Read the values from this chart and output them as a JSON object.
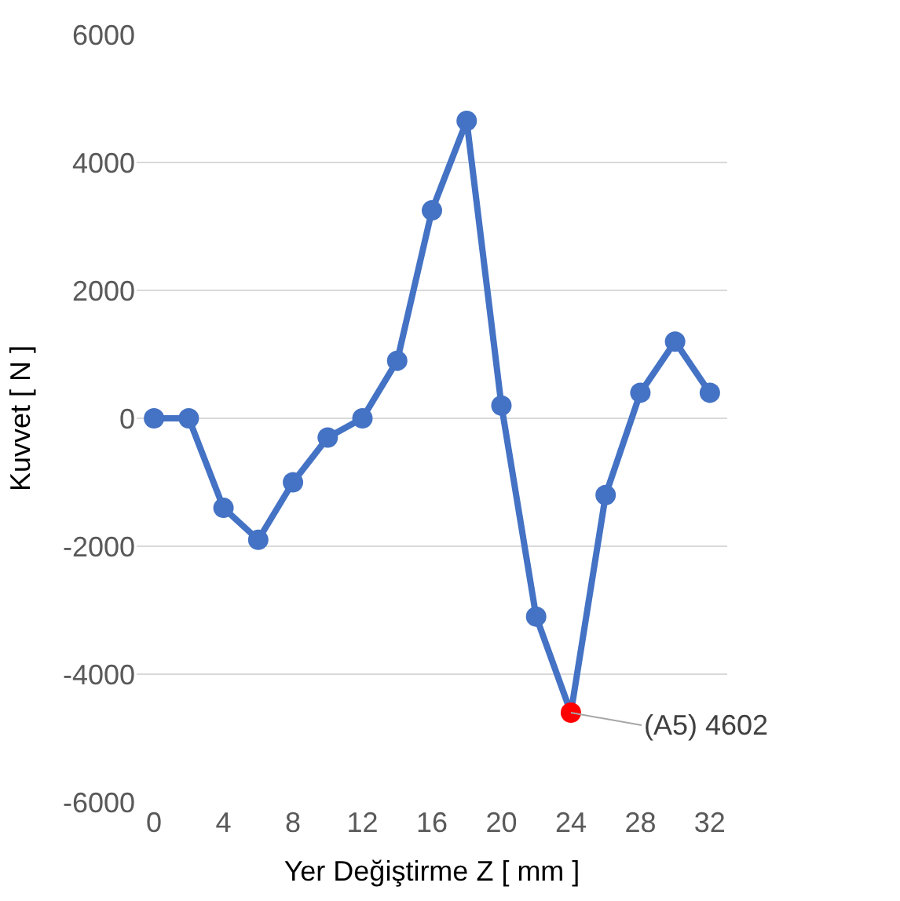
{
  "chart_data": {
    "type": "line",
    "xlabel": "Yer Değiştirme Z [ mm ]",
    "ylabel": "Kuvvet [ N ]",
    "x": [
      0,
      2,
      4,
      6,
      8,
      10,
      12,
      14,
      16,
      18,
      20,
      22,
      24,
      26,
      28,
      30,
      32
    ],
    "series": [
      {
        "color": "#4472c4",
        "values": [
          0,
          0,
          -1400,
          -1900,
          -1000,
          -300,
          0,
          900,
          3250,
          4650,
          200,
          -3100,
          -4602,
          -1200,
          400,
          1200,
          400
        ],
        "colors": [
          "#4472c4",
          "#4472c4",
          "#4472c4",
          "#4472c4",
          "#4472c4",
          "#4472c4",
          "#4472c4",
          "#4472c4",
          "#4472c4",
          "#4472c4",
          "#4472c4",
          "#4472c4",
          "#ff0000",
          "#4472c4",
          "#4472c4",
          "#4472c4",
          "#4472c4"
        ]
      }
    ],
    "xlim": [
      -1,
      33
    ],
    "xticks": [
      0,
      4,
      8,
      12,
      16,
      20,
      24,
      28,
      32
    ],
    "ylim": [
      -6000,
      6000
    ],
    "yticks": [
      -6000,
      -4000,
      -2000,
      0,
      2000,
      4000,
      6000
    ],
    "grid": "y",
    "marker": "circle",
    "line_style": "solid",
    "annotations": [
      {
        "text": "(A5) 4602",
        "x": 24,
        "y": -4602
      }
    ]
  }
}
